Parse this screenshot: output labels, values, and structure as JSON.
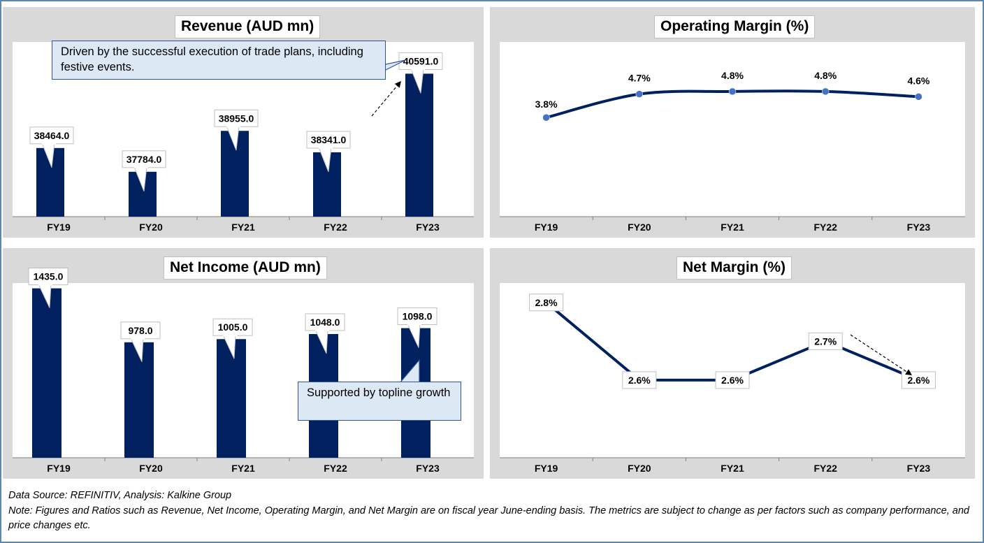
{
  "footer": {
    "source": "Data Source: REFINITIV, Analysis: Kalkine Group",
    "note": "Note: Figures and Ratios such as Revenue, Net Income, Operating Margin, and Net Margin are on fiscal year June-ending basis. The metrics are subject to change as per factors such as company performance, and price changes etc."
  },
  "colors": {
    "bar": "#002060",
    "line": "#002060",
    "marker": "#4472c4",
    "callout_fill": "#dde8f5",
    "callout_border": "#2f5597"
  },
  "chart_data": [
    {
      "id": "revenue",
      "type": "bar",
      "title": "Revenue (AUD mn)",
      "categories": [
        "FY19",
        "FY20",
        "FY21",
        "FY22",
        "FY23"
      ],
      "values": [
        38464.0,
        37784.0,
        38955.0,
        38341.0,
        40591.0
      ],
      "labels": [
        "38464.0",
        "37784.0",
        "38955.0",
        "38341.0",
        "40591.0"
      ],
      "ylim": [
        36500,
        41500
      ],
      "annotation": "Driven by the successful execution of trade plans, including festive events."
    },
    {
      "id": "operating-margin",
      "type": "line",
      "title": "Operating Margin (%)",
      "categories": [
        "FY19",
        "FY20",
        "FY21",
        "FY22",
        "FY23"
      ],
      "values": [
        3.8,
        4.7,
        4.8,
        4.8,
        4.6
      ],
      "labels": [
        "3.8%",
        "4.7%",
        "4.8%",
        "4.8%",
        "4.6%"
      ],
      "ylim": [
        0,
        6.7
      ]
    },
    {
      "id": "net-income",
      "type": "bar",
      "title": "Net Income (AUD mn)",
      "categories": [
        "FY19",
        "FY20",
        "FY21",
        "FY22",
        "FY23"
      ],
      "values": [
        1435.0,
        978.0,
        1005.0,
        1048.0,
        1098.0
      ],
      "labels": [
        "1435.0",
        "978.0",
        "1005.0",
        "1048.0",
        "1098.0"
      ],
      "ylim": [
        0,
        1480
      ],
      "annotation": "Supported by topline growth"
    },
    {
      "id": "net-margin",
      "type": "line",
      "title": "Net Margin (%)",
      "categories": [
        "FY19",
        "FY20",
        "FY21",
        "FY22",
        "FY23"
      ],
      "values": [
        2.8,
        2.6,
        2.6,
        2.7,
        2.6
      ],
      "labels": [
        "2.8%",
        "2.6%",
        "2.6%",
        "2.7%",
        "2.6%"
      ],
      "ylim": [
        2.4,
        2.85
      ]
    }
  ]
}
